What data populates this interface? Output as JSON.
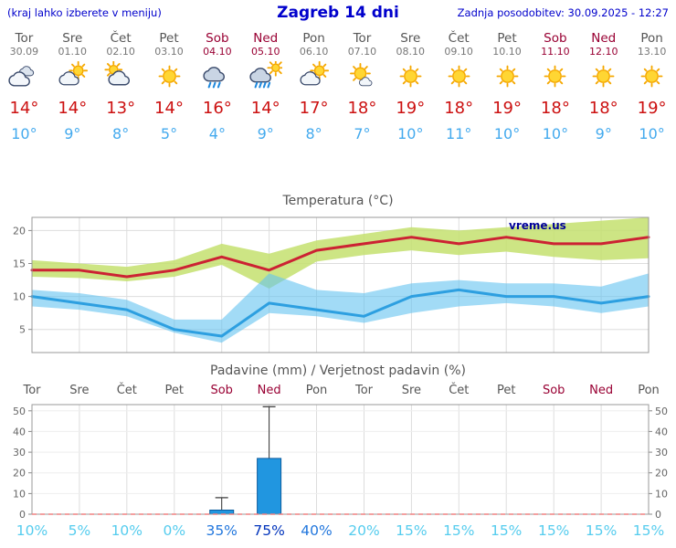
{
  "header": {
    "hint": "(kraj lahko izberete v meniju)",
    "title": "Zagreb 14 dni",
    "updated": "Zadnja posodobitev: 30.09.2025 - 12:27"
  },
  "colors": {
    "header_blue": "#0000cc",
    "weekday_text": "#555555",
    "weekend_text": "#990033",
    "temp_high": "#cc1111",
    "temp_low": "#44aaee",
    "max_line": "#cc2233",
    "min_line": "#2d9fe0",
    "max_band": "rgba(196,224,110,0.85)",
    "min_band": "rgba(100,195,240,0.60)",
    "bar_fill": "#2196e0",
    "bar_stroke": "#0d5c9e",
    "prob_low": "#55ccee",
    "prob_mid": "#2277dd",
    "prob_high": "#0033bb",
    "zero_line": "#f08080"
  },
  "forecast": {
    "days": [
      {
        "name": "Tor",
        "date": "30.09",
        "icon": "cloudy",
        "high": "14°",
        "low": "10°",
        "weekend": false
      },
      {
        "name": "Sre",
        "date": "01.10",
        "icon": "partly-cloudy",
        "high": "14°",
        "low": "9°",
        "weekend": false
      },
      {
        "name": "Čet",
        "date": "02.10",
        "icon": "mostly-cloudy",
        "high": "13°",
        "low": "8°",
        "weekend": false
      },
      {
        "name": "Pet",
        "date": "03.10",
        "icon": "sunny",
        "high": "14°",
        "low": "5°",
        "weekend": false
      },
      {
        "name": "Sob",
        "date": "04.10",
        "icon": "rain",
        "high": "16°",
        "low": "4°",
        "weekend": true
      },
      {
        "name": "Ned",
        "date": "05.10",
        "icon": "showers",
        "high": "14°",
        "low": "9°",
        "weekend": true
      },
      {
        "name": "Pon",
        "date": "06.10",
        "icon": "partly-cloudy",
        "high": "17°",
        "low": "8°",
        "weekend": false
      },
      {
        "name": "Tor",
        "date": "07.10",
        "icon": "mostly-sunny",
        "high": "18°",
        "low": "7°",
        "weekend": false
      },
      {
        "name": "Sre",
        "date": "08.10",
        "icon": "sunny",
        "high": "19°",
        "low": "10°",
        "weekend": false
      },
      {
        "name": "Čet",
        "date": "09.10",
        "icon": "sunny",
        "high": "18°",
        "low": "11°",
        "weekend": false
      },
      {
        "name": "Pet",
        "date": "10.10",
        "icon": "sunny",
        "high": "19°",
        "low": "10°",
        "weekend": false
      },
      {
        "name": "Sob",
        "date": "11.10",
        "icon": "sunny",
        "high": "18°",
        "low": "10°",
        "weekend": true
      },
      {
        "name": "Ned",
        "date": "12.10",
        "icon": "sunny",
        "high": "18°",
        "low": "9°",
        "weekend": true
      },
      {
        "name": "Pon",
        "date": "13.10",
        "icon": "sunny",
        "high": "19°",
        "low": "10°",
        "weekend": false
      }
    ]
  },
  "chart_data": [
    {
      "type": "line",
      "title": "Temperatura (°C)",
      "watermark": "vreme.us",
      "x_labels": [
        "Tor",
        "Sre",
        "Čet",
        "Pet",
        "Sob",
        "Ned",
        "Pon",
        "Tor",
        "Sre",
        "Čet",
        "Pet",
        "Sob",
        "Ned",
        "Pon"
      ],
      "ylim": [
        1.5,
        22
      ],
      "yticks": [
        5,
        10,
        15,
        20
      ],
      "grid": true,
      "legend": "none",
      "series": [
        {
          "name": "max_temp",
          "values": [
            14,
            14,
            13,
            14,
            16,
            14,
            17,
            18,
            19,
            18,
            19,
            18,
            18,
            19
          ]
        },
        {
          "name": "min_temp",
          "values": [
            10,
            9,
            8,
            5,
            4,
            9,
            8,
            7,
            10,
            11,
            10,
            10,
            9,
            10
          ]
        }
      ],
      "bands": [
        {
          "name": "max_spread",
          "upper": [
            15.5,
            15,
            14.5,
            15.5,
            18,
            16.5,
            18.5,
            19.5,
            20.5,
            20,
            20.5,
            21,
            21.5,
            22
          ],
          "lower": [
            13,
            12.8,
            12.3,
            13,
            14.8,
            11.2,
            15.3,
            16.3,
            17,
            16.3,
            16.8,
            16,
            15.5,
            15.8
          ]
        },
        {
          "name": "min_spread",
          "upper": [
            11,
            10.5,
            9.5,
            6.5,
            6.5,
            13.5,
            11,
            10.5,
            12,
            12.5,
            12,
            12,
            11.5,
            13.5
          ],
          "lower": [
            8.5,
            8,
            7,
            4.5,
            3,
            7.5,
            7,
            6,
            7.5,
            8.5,
            9,
            8.5,
            7.5,
            8.5
          ]
        }
      ]
    },
    {
      "type": "bar",
      "title": "Padavine (mm) / Verjetnost padavin (%)",
      "x_labels": [
        "Tor",
        "Sre",
        "Čet",
        "Pet",
        "Sob",
        "Ned",
        "Pon",
        "Tor",
        "Sre",
        "Čet",
        "Pet",
        "Sob",
        "Ned",
        "Pon"
      ],
      "weekend_indices": [
        4,
        5,
        11,
        12
      ],
      "ylim": [
        0,
        53
      ],
      "yticks": [
        0,
        10,
        20,
        30,
        40,
        50
      ],
      "values": [
        0,
        0,
        0,
        0,
        2,
        27,
        0,
        0,
        0,
        0,
        0,
        0,
        0,
        0
      ],
      "whisker_max": [
        0,
        0,
        0,
        0,
        8,
        52,
        0,
        0,
        0,
        0,
        0,
        0,
        0,
        0
      ],
      "probabilities": [
        10,
        5,
        10,
        0,
        35,
        75,
        40,
        20,
        15,
        15,
        15,
        15,
        15,
        15
      ],
      "probability_suffix": "%"
    }
  ]
}
